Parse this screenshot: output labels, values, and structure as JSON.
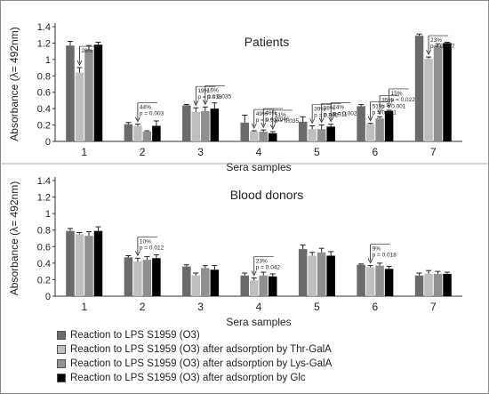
{
  "chart_data": [
    {
      "type": "bar",
      "title": "Patients",
      "xlabel": "Sera samples",
      "ylabel": "Absorbance (λ= 492nm)",
      "categories": [
        "1",
        "2",
        "3",
        "4",
        "5",
        "6",
        "7"
      ],
      "ylim": [
        0,
        1.4
      ],
      "yticks": [
        "0",
        "0.2",
        "0.4",
        "0.6",
        "0.8",
        "1",
        "1.2",
        "1.4"
      ],
      "series": [
        {
          "name": "Reaction to LPS S1959 (O3)",
          "color": "#6b6b6b",
          "values": [
            1.17,
            0.21,
            0.44,
            0.23,
            0.24,
            0.43,
            1.29
          ],
          "errors": [
            0.05,
            0.02,
            0.01,
            0.09,
            0.06,
            0.02,
            0.02
          ]
        },
        {
          "name": "Reaction to LPS S1959 (O3) after adsorption by Thr-GalA",
          "color": "#bfbfbf",
          "values": [
            0.84,
            0.19,
            0.36,
            0.12,
            0.15,
            0.21,
            1.01
          ],
          "errors": [
            0.06,
            0.02,
            0.05,
            0.01,
            0.04,
            0.01,
            0.02
          ]
        },
        {
          "name": "Reaction to LPS S1959 (O3) after adsorption by Lys-GalA",
          "color": "#8f8f8f",
          "values": [
            1.12,
            0.12,
            0.37,
            0.12,
            0.15,
            0.28,
            1.17
          ],
          "errors": [
            0.05,
            0.01,
            0.05,
            0.02,
            0.05,
            0.02,
            0.02
          ]
        },
        {
          "name": "Reaction to LPS S1959 (O3) after adsorption by Glc",
          "color": "#000000",
          "values": [
            1.18,
            0.19,
            0.4,
            0.1,
            0.18,
            0.37,
            1.2
          ],
          "errors": [
            0.03,
            0.06,
            0.07,
            0.02,
            0.03,
            0.01,
            0.01
          ]
        }
      ],
      "annotations": [
        {
          "category": "1",
          "lines": [
            "28%"
          ]
        },
        {
          "category": "2",
          "lines": [
            "44%",
            "p = 0.003"
          ]
        },
        {
          "category": "3",
          "lines": [
            "19%",
            "p = 0.038"
          ]
        },
        {
          "category": "3",
          "lines": [
            "16%",
            "p = 0.035"
          ]
        },
        {
          "category": "4",
          "lines": [
            "49%",
            "p = 0.037"
          ]
        },
        {
          "category": "4",
          "lines": [
            "46%",
            "p = 0.046"
          ]
        },
        {
          "category": "4",
          "lines": [
            "51%",
            "p = 0.035"
          ]
        },
        {
          "category": "5",
          "lines": [
            "39%",
            "p = 0.002"
          ]
        },
        {
          "category": "5",
          "lines": [
            "38%",
            "p = 0.011"
          ]
        },
        {
          "category": "5",
          "lines": [
            "24%",
            "p = 0.002"
          ]
        },
        {
          "category": "6",
          "lines": [
            "51%",
            "p = 0.001"
          ]
        },
        {
          "category": "6",
          "lines": [
            "35%",
            "p < 0.001"
          ]
        },
        {
          "category": "6",
          "lines": [
            "15%",
            "p = 0.022"
          ]
        },
        {
          "category": "7",
          "lines": [
            "23%",
            "p = 0.007"
          ]
        }
      ]
    },
    {
      "type": "bar",
      "title": "Blood donors",
      "xlabel": "Sera samples",
      "ylabel": "Absorbance (λ= 492nm)",
      "categories": [
        "1",
        "2",
        "3",
        "4",
        "5",
        "6",
        "7"
      ],
      "ylim": [
        0,
        1.4
      ],
      "yticks": [
        "0",
        "0.2",
        "0.4",
        "0.6",
        "0.8",
        "1",
        "1.2",
        "1.4"
      ],
      "series": [
        {
          "name": "Reaction to LPS S1959 (O3)",
          "color": "#6b6b6b",
          "values": [
            0.79,
            0.47,
            0.36,
            0.25,
            0.57,
            0.38,
            0.25
          ],
          "errors": [
            0.03,
            0.02,
            0.02,
            0.03,
            0.05,
            0.01,
            0.03
          ]
        },
        {
          "name": "Reaction to LPS S1959 (O3) after adsorption by Thr-GalA",
          "color": "#bfbfbf",
          "values": [
            0.75,
            0.42,
            0.25,
            0.19,
            0.49,
            0.35,
            0.27
          ],
          "errors": [
            0.02,
            0.04,
            0.03,
            0.03,
            0.04,
            0.02,
            0.04
          ]
        },
        {
          "name": "Reaction to LPS S1959 (O3) after adsorption by Lys-GalA",
          "color": "#8f8f8f",
          "values": [
            0.73,
            0.44,
            0.34,
            0.25,
            0.53,
            0.37,
            0.27
          ],
          "errors": [
            0.05,
            0.04,
            0.03,
            0.04,
            0.05,
            0.03,
            0.03
          ]
        },
        {
          "name": "Reaction to LPS S1959 (O3) after adsorption by Glc",
          "color": "#000000",
          "values": [
            0.79,
            0.46,
            0.32,
            0.24,
            0.49,
            0.33,
            0.27
          ],
          "errors": [
            0.05,
            0.04,
            0.05,
            0.03,
            0.05,
            0.03,
            0.02
          ]
        }
      ],
      "annotations": [
        {
          "category": "2",
          "lines": [
            "10%",
            "p = 0.012"
          ]
        },
        {
          "category": "4",
          "lines": [
            "23%",
            "p = 0.042"
          ]
        },
        {
          "category": "6",
          "lines": [
            "9%",
            "p = 0.018"
          ]
        }
      ]
    }
  ]
}
